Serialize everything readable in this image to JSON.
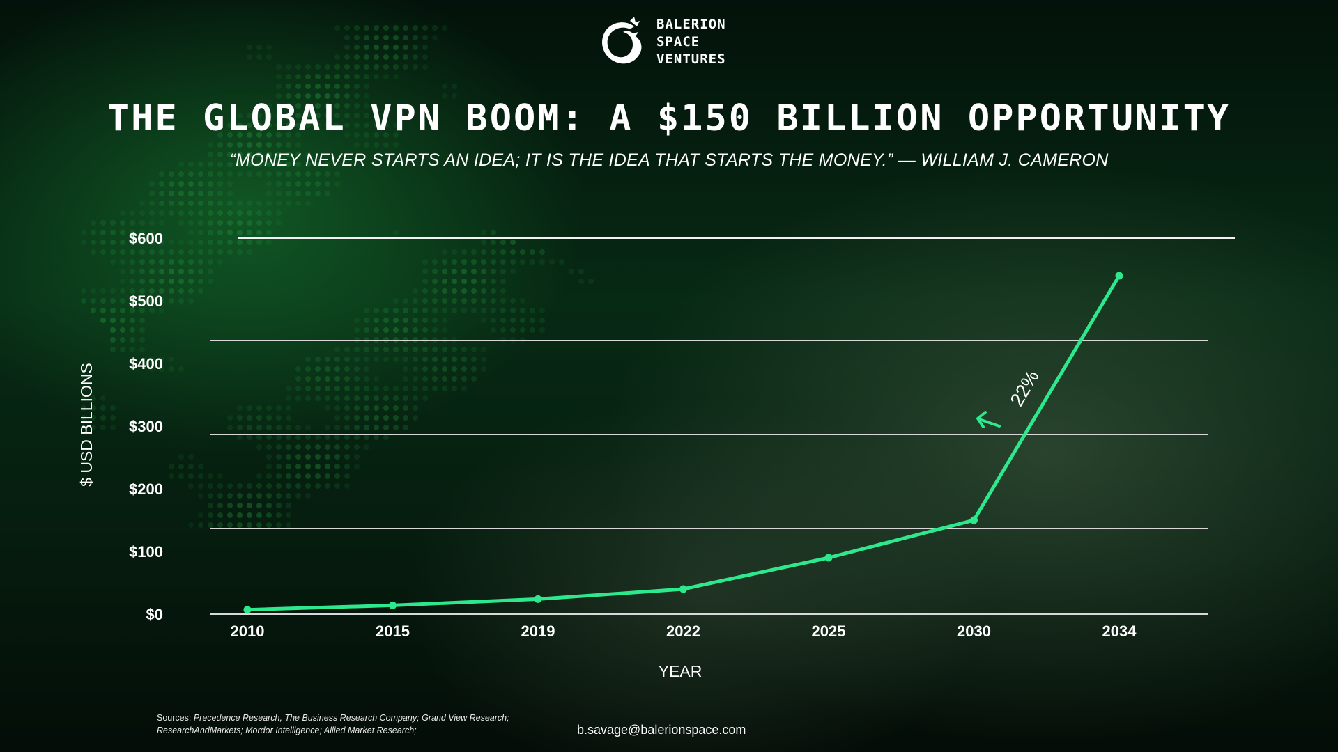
{
  "brand": {
    "line1": "BALERION",
    "line2": "SPACE",
    "line3": "VENTURES"
  },
  "title": "THE GLOBAL VPN BOOM: A $150 BILLION OPPORTUNITY",
  "quote": "“MONEY NEVER STARTS AN IDEA; IT IS THE IDEA THAT STARTS THE MONEY.” — WILLIAM J. CAMERON",
  "chart_data": {
    "type": "line",
    "xlabel": "YEAR",
    "ylabel": "$ USD BILLIONS",
    "categories": [
      "2010",
      "2015",
      "2019",
      "2022",
      "2025",
      "2030",
      "2034"
    ],
    "series": [
      {
        "name": "",
        "values": [
          7,
          14,
          24,
          40,
          90,
          150,
          540
        ]
      }
    ],
    "ylim": [
      0,
      600
    ],
    "yticks": [
      0,
      100,
      200,
      300,
      400,
      500,
      600
    ],
    "ytick_labels": [
      "$0",
      "$100",
      "$200",
      "$300",
      "$400",
      "$500",
      "$600"
    ],
    "annotation": "22%",
    "line_color": "#2ee88e",
    "grid": true
  },
  "footer": {
    "sources_label": "Sources:",
    "sources_text": "Precedence Research, The Business Research Company; Grand View Research; ResearchAndMarkets; Mordor Intelligence; Allied Market Research;",
    "email": "b.savage@balerionspace.com"
  }
}
